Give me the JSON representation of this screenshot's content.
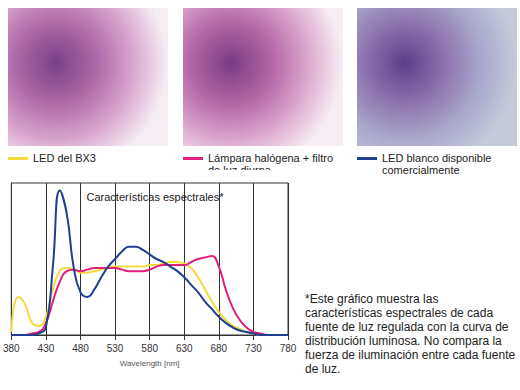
{
  "chart_data": {
    "type": "line",
    "title": "Características espectrales*",
    "x_label": "Wavelength [nm]",
    "xlim": [
      380,
      780
    ],
    "xticks": [
      380,
      430,
      480,
      530,
      580,
      630,
      680,
      730,
      780
    ],
    "ylim": [
      0,
      1
    ],
    "tick_labels": "x",
    "grid": "x",
    "note": "*Este gráfico muestra las características espectrales de cada fuente de luz regulada con la curva de distribución luminosa. No compara la fuerza de iluminación entre cada fuente de luz.",
    "x": [
      380,
      390,
      400,
      410,
      420,
      430,
      440,
      450,
      460,
      470,
      480,
      490,
      500,
      510,
      520,
      530,
      540,
      550,
      560,
      570,
      580,
      590,
      600,
      610,
      620,
      630,
      640,
      650,
      660,
      670,
      680,
      690,
      700,
      710,
      720,
      730,
      740,
      750,
      760,
      770,
      780
    ],
    "series": [
      {
        "name": "LED del BX3",
        "color": "#f2dc3c",
        "values": [
          0.02,
          0.25,
          0.2,
          0.08,
          0.06,
          0.12,
          0.3,
          0.42,
          0.44,
          0.43,
          0.41,
          0.41,
          0.42,
          0.43,
          0.44,
          0.45,
          0.45,
          0.45,
          0.45,
          0.45,
          0.46,
          0.46,
          0.47,
          0.48,
          0.48,
          0.47,
          0.44,
          0.38,
          0.3,
          0.22,
          0.15,
          0.1,
          0.06,
          0.04,
          0.02,
          0.01,
          0,
          0,
          0,
          0,
          0
        ]
      },
      {
        "name": "Lámpara halógena + filtro de luz diurna",
        "color": "#e0207a",
        "values": [
          0,
          0,
          0,
          0.01,
          0.02,
          0.08,
          0.22,
          0.35,
          0.42,
          0.43,
          0.42,
          0.43,
          0.44,
          0.44,
          0.44,
          0.44,
          0.43,
          0.42,
          0.42,
          0.42,
          0.43,
          0.45,
          0.46,
          0.46,
          0.46,
          0.46,
          0.48,
          0.5,
          0.51,
          0.52,
          0.45,
          0.3,
          0.18,
          0.1,
          0.05,
          0.02,
          0.01,
          0,
          0,
          0,
          0
        ]
      },
      {
        "name": "LED blanco disponible comercialmente",
        "color": "#1f3f8f",
        "values": [
          0,
          0,
          0,
          0,
          0.01,
          0.05,
          0.45,
          0.95,
          0.8,
          0.45,
          0.28,
          0.25,
          0.3,
          0.38,
          0.45,
          0.5,
          0.55,
          0.58,
          0.58,
          0.56,
          0.53,
          0.5,
          0.48,
          0.45,
          0.42,
          0.38,
          0.33,
          0.28,
          0.22,
          0.17,
          0.12,
          0.08,
          0.05,
          0.03,
          0.02,
          0.01,
          0,
          0,
          0,
          0,
          0
        ]
      }
    ]
  }
}
